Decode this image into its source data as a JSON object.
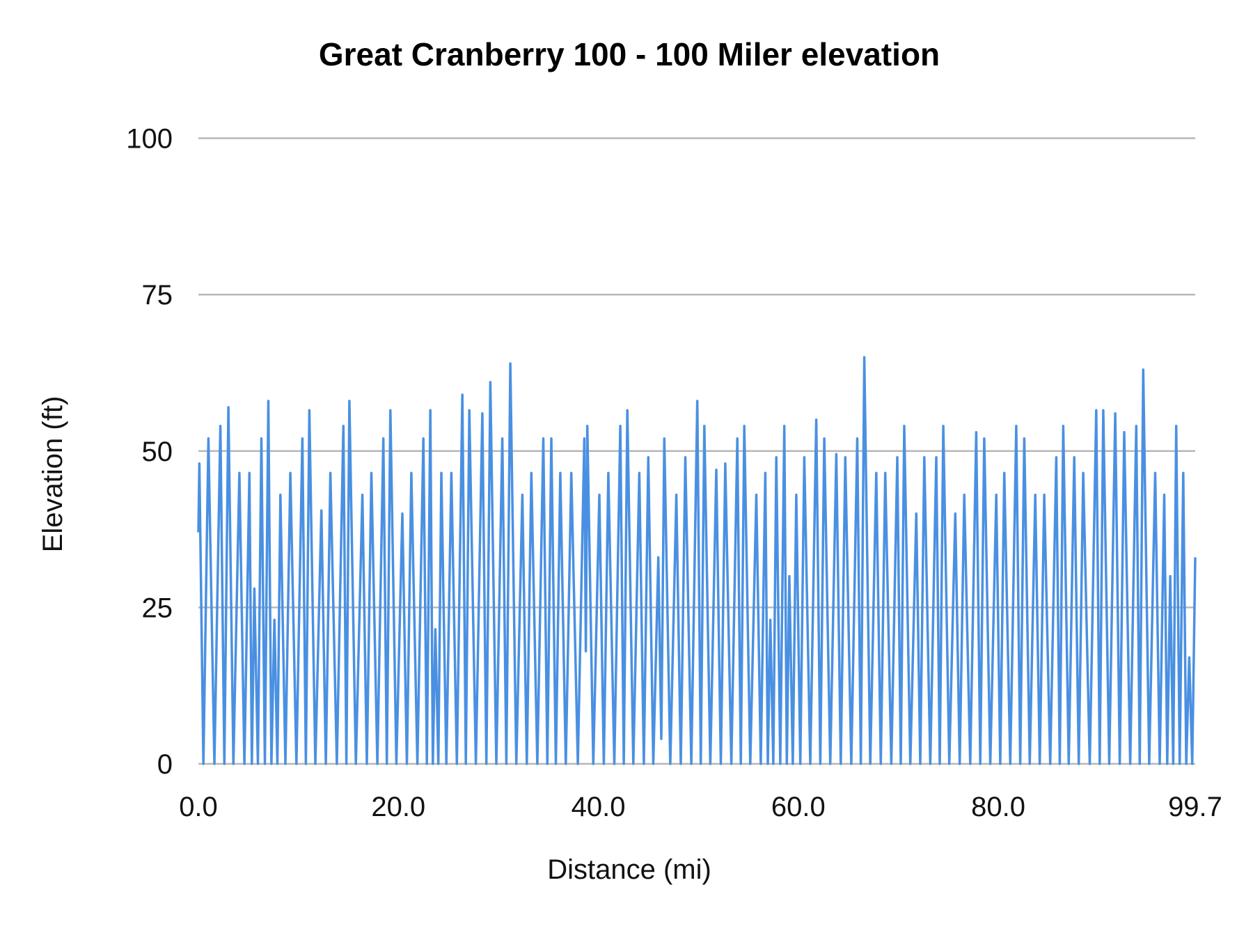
{
  "chart_data": {
    "type": "line",
    "title": "Great Cranberry 100 - 100 Miler elevation",
    "xlabel": "Distance (mi)",
    "ylabel": "Elevation (ft)",
    "xlim": [
      0,
      99.7
    ],
    "ylim": [
      0,
      100
    ],
    "x_ticks": [
      "0.0",
      "20.0",
      "40.0",
      "60.0",
      "80.0",
      "99.7"
    ],
    "x_tick_values": [
      0,
      20,
      40,
      60,
      80,
      99.7
    ],
    "y_ticks": [
      "0",
      "25",
      "50",
      "75",
      "100"
    ],
    "y_tick_values": [
      0,
      25,
      50,
      75,
      100
    ],
    "grid": "horizontal",
    "legend": "none",
    "line_color": "#4a90e2",
    "grid_color": "#b7b7b7",
    "series": [
      {
        "points": [
          [
            0,
            37
          ],
          [
            0.1,
            48
          ],
          [
            0.5,
            0
          ],
          [
            1.0,
            52
          ],
          [
            1.6,
            0
          ],
          [
            2.2,
            54
          ],
          [
            2.6,
            0
          ],
          [
            3.0,
            57
          ],
          [
            3.5,
            0
          ],
          [
            4.1,
            46.5
          ],
          [
            4.6,
            0
          ],
          [
            5.1,
            46.5
          ],
          [
            5.35,
            0
          ],
          [
            5.6,
            28
          ],
          [
            5.95,
            0
          ],
          [
            6.3,
            52
          ],
          [
            6.65,
            0
          ],
          [
            7.0,
            58
          ],
          [
            7.3,
            0
          ],
          [
            7.6,
            23
          ],
          [
            7.9,
            0
          ],
          [
            8.2,
            43
          ],
          [
            8.7,
            0
          ],
          [
            9.2,
            46.5
          ],
          [
            9.8,
            0
          ],
          [
            10.4,
            52
          ],
          [
            10.75,
            0
          ],
          [
            11.1,
            56.5
          ],
          [
            11.7,
            0
          ],
          [
            12.3,
            40.5
          ],
          [
            12.75,
            0
          ],
          [
            13.2,
            46.5
          ],
          [
            13.85,
            0
          ],
          [
            14.5,
            54
          ],
          [
            14.8,
            0
          ],
          [
            15.1,
            58
          ],
          [
            15.75,
            0
          ],
          [
            16.4,
            43
          ],
          [
            16.85,
            0
          ],
          [
            17.3,
            46.5
          ],
          [
            17.9,
            0
          ],
          [
            18.5,
            52
          ],
          [
            18.85,
            0
          ],
          [
            19.2,
            56.5
          ],
          [
            19.8,
            0
          ],
          [
            20.4,
            40
          ],
          [
            20.85,
            0
          ],
          [
            21.3,
            46.5
          ],
          [
            21.9,
            0
          ],
          [
            22.5,
            52
          ],
          [
            22.85,
            0
          ],
          [
            23.2,
            56.5
          ],
          [
            23.45,
            0
          ],
          [
            23.7,
            21.5
          ],
          [
            24.0,
            0
          ],
          [
            24.3,
            46.5
          ],
          [
            24.8,
            0
          ],
          [
            25.3,
            46.5
          ],
          [
            25.85,
            0
          ],
          [
            26.4,
            59
          ],
          [
            26.75,
            0
          ],
          [
            27.1,
            56.5
          ],
          [
            27.75,
            0
          ],
          [
            28.4,
            56
          ],
          [
            28.8,
            0
          ],
          [
            29.2,
            61
          ],
          [
            29.8,
            0
          ],
          [
            30.4,
            52
          ],
          [
            30.8,
            0
          ],
          [
            31.2,
            64
          ],
          [
            31.8,
            0
          ],
          [
            32.4,
            43
          ],
          [
            32.85,
            0
          ],
          [
            33.3,
            46.5
          ],
          [
            33.9,
            0
          ],
          [
            34.5,
            52
          ],
          [
            34.9,
            0
          ],
          [
            35.3,
            52
          ],
          [
            35.75,
            0
          ],
          [
            36.2,
            46.5
          ],
          [
            36.75,
            0
          ],
          [
            37.3,
            46.5
          ],
          [
            37.95,
            0
          ],
          [
            38.6,
            52
          ],
          [
            38.75,
            18
          ],
          [
            38.9,
            54
          ],
          [
            39.5,
            0
          ],
          [
            40.1,
            43
          ],
          [
            40.55,
            0
          ],
          [
            41.0,
            46.5
          ],
          [
            41.6,
            0
          ],
          [
            42.2,
            54
          ],
          [
            42.55,
            0
          ],
          [
            42.9,
            56.5
          ],
          [
            43.5,
            0
          ],
          [
            44.1,
            46.5
          ],
          [
            44.55,
            0
          ],
          [
            45.0,
            49
          ],
          [
            45.5,
            0
          ],
          [
            46.0,
            33
          ],
          [
            46.3,
            4
          ],
          [
            46.6,
            52
          ],
          [
            47.2,
            0
          ],
          [
            47.8,
            43
          ],
          [
            48.25,
            0
          ],
          [
            48.7,
            49
          ],
          [
            49.3,
            0
          ],
          [
            49.9,
            58
          ],
          [
            50.25,
            0
          ],
          [
            50.6,
            54
          ],
          [
            51.2,
            0
          ],
          [
            51.8,
            47
          ],
          [
            52.25,
            0
          ],
          [
            52.7,
            48
          ],
          [
            53.3,
            0
          ],
          [
            53.9,
            52
          ],
          [
            54.25,
            0
          ],
          [
            54.6,
            54
          ],
          [
            55.2,
            0
          ],
          [
            55.8,
            43
          ],
          [
            56.25,
            0
          ],
          [
            56.7,
            46.5
          ],
          [
            56.95,
            0
          ],
          [
            57.2,
            23
          ],
          [
            57.5,
            0
          ],
          [
            57.8,
            49
          ],
          [
            58.2,
            0
          ],
          [
            58.6,
            54
          ],
          [
            58.85,
            0
          ],
          [
            59.1,
            30
          ],
          [
            59.45,
            0
          ],
          [
            59.8,
            43
          ],
          [
            60.2,
            0
          ],
          [
            60.6,
            49
          ],
          [
            61.2,
            0
          ],
          [
            61.8,
            55
          ],
          [
            62.2,
            0
          ],
          [
            62.6,
            52
          ],
          [
            63.2,
            0
          ],
          [
            63.8,
            49.5
          ],
          [
            64.25,
            0
          ],
          [
            64.7,
            49
          ],
          [
            65.3,
            0
          ],
          [
            65.9,
            52
          ],
          [
            66.25,
            0
          ],
          [
            66.6,
            65
          ],
          [
            67.2,
            0
          ],
          [
            67.8,
            46.5
          ],
          [
            68.25,
            0
          ],
          [
            68.7,
            46.5
          ],
          [
            69.3,
            0
          ],
          [
            69.9,
            49
          ],
          [
            70.25,
            0
          ],
          [
            70.6,
            54
          ],
          [
            71.2,
            0
          ],
          [
            71.8,
            40
          ],
          [
            72.2,
            0
          ],
          [
            72.6,
            49
          ],
          [
            73.2,
            0
          ],
          [
            73.8,
            49
          ],
          [
            74.15,
            0
          ],
          [
            74.5,
            54
          ],
          [
            75.1,
            0
          ],
          [
            75.7,
            40
          ],
          [
            76.15,
            0
          ],
          [
            76.6,
            43
          ],
          [
            77.2,
            0
          ],
          [
            77.8,
            53
          ],
          [
            78.2,
            0
          ],
          [
            78.6,
            52
          ],
          [
            79.2,
            0
          ],
          [
            79.8,
            43
          ],
          [
            80.2,
            0
          ],
          [
            80.6,
            46.5
          ],
          [
            81.2,
            0
          ],
          [
            81.8,
            54
          ],
          [
            82.2,
            0
          ],
          [
            82.6,
            52
          ],
          [
            83.15,
            0
          ],
          [
            83.7,
            43
          ],
          [
            84.15,
            0
          ],
          [
            84.6,
            43
          ],
          [
            85.2,
            0
          ],
          [
            85.8,
            49
          ],
          [
            86.15,
            0
          ],
          [
            86.5,
            54
          ],
          [
            87.05,
            0
          ],
          [
            87.6,
            49
          ],
          [
            88.05,
            0
          ],
          [
            88.5,
            46.5
          ],
          [
            89.15,
            0
          ],
          [
            89.8,
            56.5
          ],
          [
            90.15,
            0
          ],
          [
            90.5,
            56.5
          ],
          [
            91.1,
            0
          ],
          [
            91.7,
            56
          ],
          [
            92.15,
            0
          ],
          [
            92.6,
            53
          ],
          [
            93.2,
            0
          ],
          [
            93.8,
            54
          ],
          [
            94.15,
            0
          ],
          [
            94.5,
            63
          ],
          [
            95.1,
            0
          ],
          [
            95.7,
            46.5
          ],
          [
            96.15,
            0
          ],
          [
            96.6,
            43
          ],
          [
            96.9,
            0
          ],
          [
            97.2,
            30
          ],
          [
            97.5,
            0
          ],
          [
            97.8,
            54
          ],
          [
            98.15,
            0
          ],
          [
            98.5,
            46.5
          ],
          [
            98.8,
            0
          ],
          [
            99.1,
            17
          ],
          [
            99.4,
            0
          ],
          [
            99.7,
            33
          ]
        ]
      }
    ]
  }
}
